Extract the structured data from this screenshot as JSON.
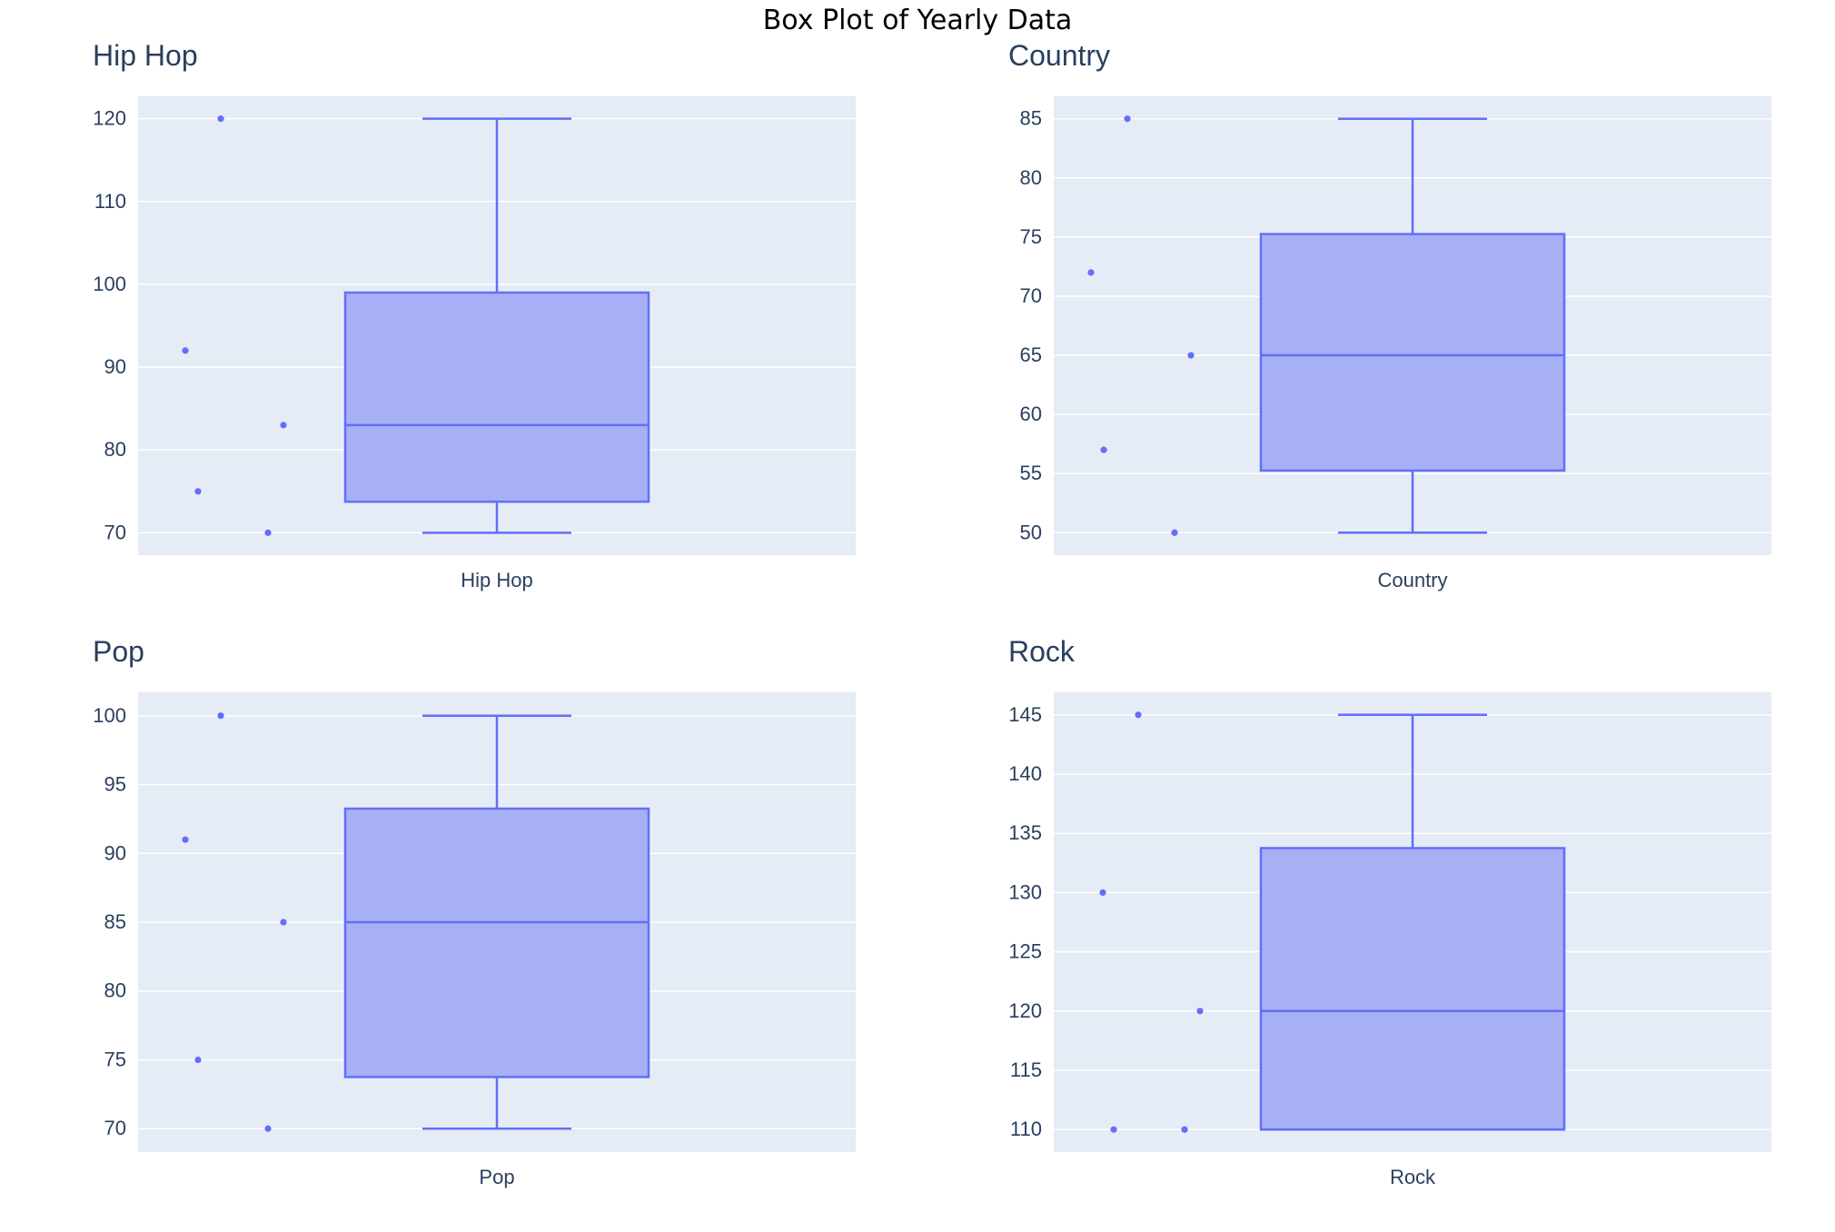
{
  "title": "Box Plot of Yearly Data",
  "colors": {
    "plot_bg": "#e5ecf6",
    "grid": "#ffffff",
    "box_fill": "#a3adf4",
    "box_line": "#636efa",
    "text": "#2a3f5f"
  },
  "chart_data": [
    {
      "type": "box",
      "subplot_title": "Hip Hop",
      "category": "Hip Hop",
      "ylim": [
        67.3,
        122.7
      ],
      "yticks": [
        70,
        80,
        90,
        100,
        110,
        120
      ],
      "box": {
        "min": 70,
        "q1": 73.75,
        "median": 83,
        "q3": 99,
        "max": 120
      },
      "points": [
        120,
        92,
        83,
        75,
        70
      ],
      "grid": true
    },
    {
      "type": "box",
      "subplot_title": "Country",
      "category": "Country",
      "ylim": [
        48.1,
        86.9
      ],
      "yticks": [
        50,
        55,
        60,
        65,
        70,
        75,
        80,
        85
      ],
      "box": {
        "min": 50,
        "q1": 55.25,
        "median": 65,
        "q3": 75.25,
        "max": 85
      },
      "points": [
        85,
        72,
        65,
        57,
        50
      ],
      "grid": true
    },
    {
      "type": "box",
      "subplot_title": "Pop",
      "category": "Pop",
      "ylim": [
        68.3,
        101.7
      ],
      "yticks": [
        70,
        75,
        80,
        85,
        90,
        95,
        100
      ],
      "box": {
        "min": 70,
        "q1": 73.75,
        "median": 85,
        "q3": 93.25,
        "max": 100
      },
      "points": [
        100,
        91,
        85,
        75,
        70
      ],
      "grid": true
    },
    {
      "type": "box",
      "subplot_title": "Rock",
      "category": "Rock",
      "ylim": [
        108.1,
        146.9
      ],
      "yticks": [
        110,
        115,
        120,
        125,
        130,
        135,
        140,
        145
      ],
      "box": {
        "min": 110,
        "q1": 110,
        "median": 120,
        "q3": 133.75,
        "max": 145
      },
      "points": [
        145,
        130,
        120,
        110,
        110
      ],
      "grid": true
    }
  ]
}
